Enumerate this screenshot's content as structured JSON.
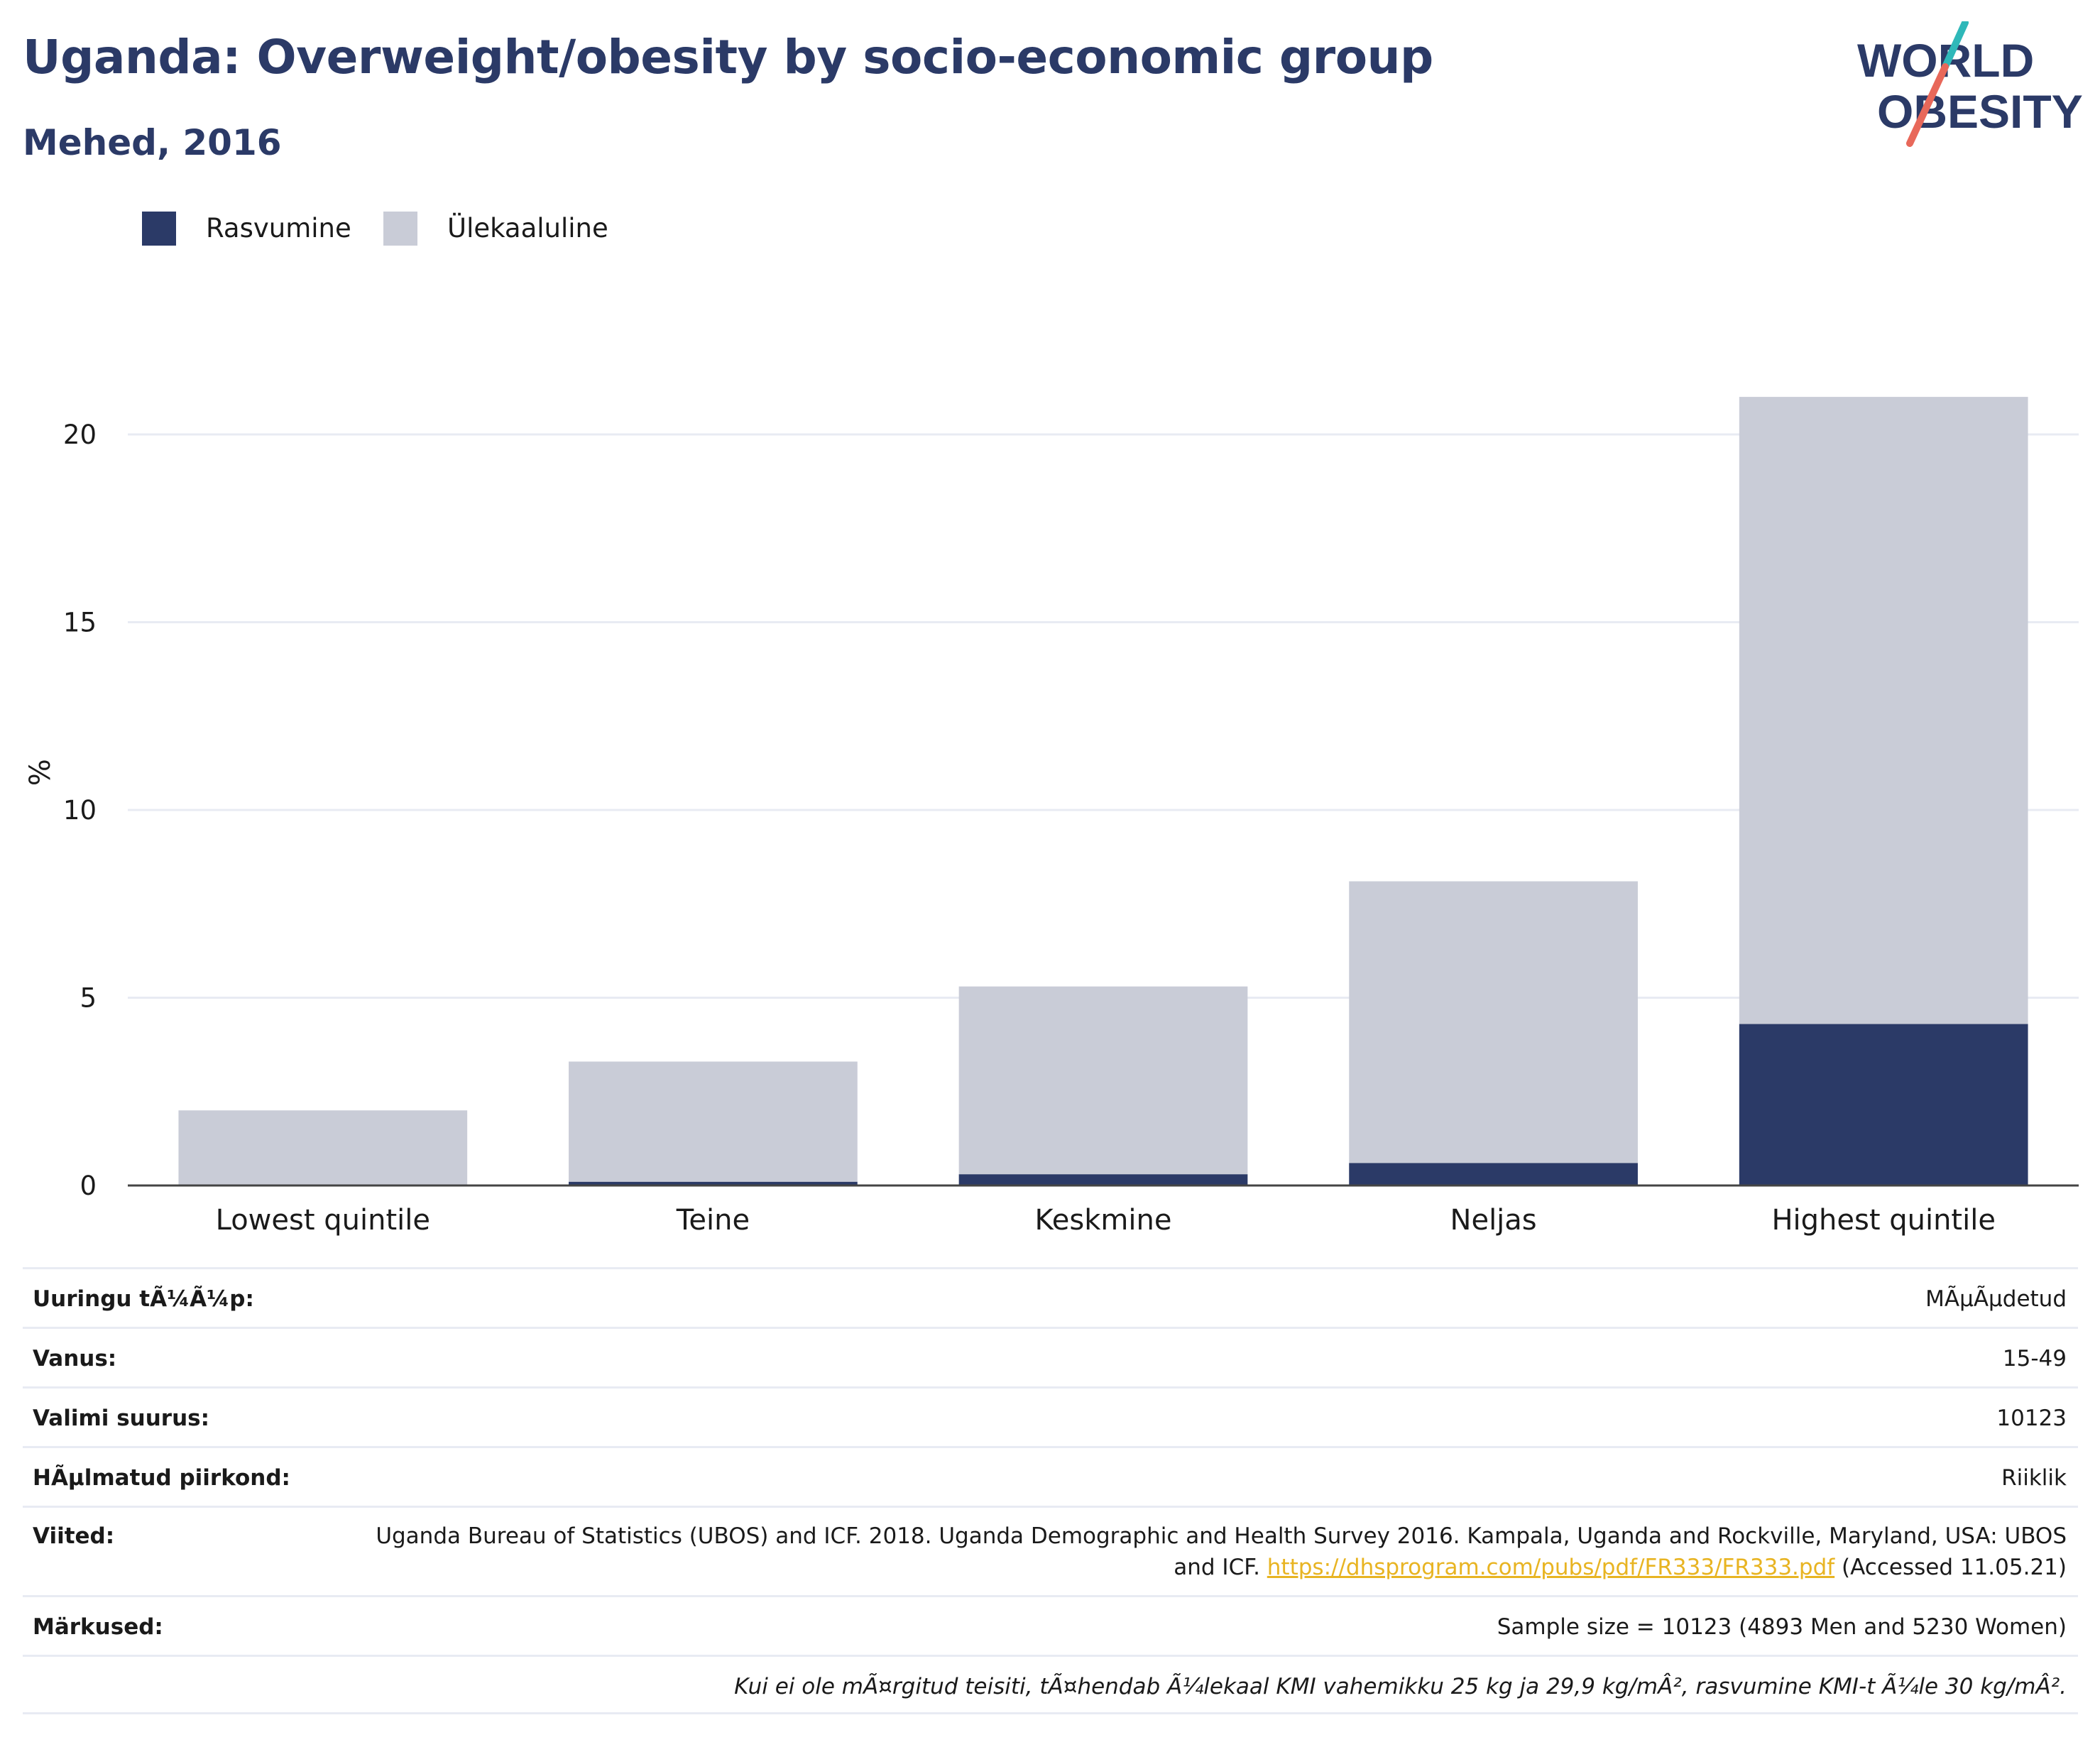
{
  "header": {
    "title": "Uganda: Overweight/obesity by socio-economic group",
    "subtitle": "Mehed, 2016"
  },
  "logo": {
    "line1": "WORLD",
    "line2": "OBESITY"
  },
  "legend": [
    {
      "label": "Rasvumine",
      "color": "#2b3a67"
    },
    {
      "label": "Ülekaaluline",
      "color": "#c9ccd7"
    }
  ],
  "chart_data": {
    "type": "bar",
    "stacked": true,
    "categories": [
      "Lowest quintile",
      "Teine",
      "Keskmine",
      "Neljas",
      "Highest quintile"
    ],
    "series": [
      {
        "name": "Rasvumine",
        "color": "#2b3a67",
        "values": [
          0,
          0.1,
          0.3,
          0.6,
          4.3
        ]
      },
      {
        "name": "Ülekaaluline",
        "color": "#c9ccd7",
        "values": [
          2.0,
          3.2,
          5.0,
          7.5,
          16.7
        ]
      }
    ],
    "ylabel": "%",
    "ylim": [
      0,
      22
    ],
    "yticks": [
      0,
      5,
      10,
      15,
      20
    ],
    "grid": true
  },
  "info": {
    "survey_type": {
      "label": "Uuringu tÃ¼Ã¼p:",
      "value": "MÃµÃµdetud"
    },
    "age": {
      "label": "Vanus:",
      "value": "15-49"
    },
    "sample_size": {
      "label": "Valimi suurus:",
      "value": "10123"
    },
    "area": {
      "label": "HÃµlmatud piirkond:",
      "value": "Riiklik"
    },
    "references": {
      "label": "Viited:",
      "text_before": "Uganda Bureau of Statistics (UBOS) and ICF. 2018. Uganda Demographic and Health Survey 2016. Kampala, Uganda and Rockville, Maryland, USA: UBOS and ICF. ",
      "link": "https://dhsprogram.com/pubs/pdf/FR333/FR333.pdf",
      "text_after": " (Accessed 11.05.21)"
    },
    "notes": {
      "label": "Märkused:",
      "value": "Sample size = 10123 (4893 Men and 5230 Women)"
    },
    "footnote": "Kui ei ole mÃ¤rgitud teisiti, tÃ¤hendab Ã¼lekaal KMI vahemikku 25 kg ja 29,9 kg/mÂ², rasvumine KMI-t Ã¼le 30 kg/mÂ²."
  }
}
